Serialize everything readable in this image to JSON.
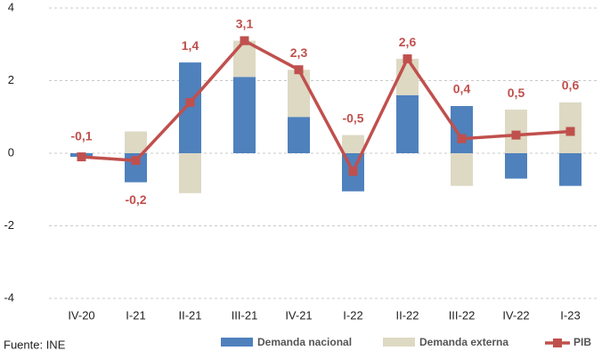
{
  "chart_data": {
    "type": "bar-line",
    "categories": [
      "IV-20",
      "I-21",
      "II-21",
      "III-21",
      "IV-21",
      "I-22",
      "II-22",
      "III-22",
      "IV-22",
      "I-23"
    ],
    "series": [
      {
        "name": "Demanda nacional",
        "type": "bar",
        "color": "#4f81bd",
        "values": [
          -0.1,
          -0.8,
          2.5,
          2.1,
          1.0,
          -1.05,
          1.6,
          1.3,
          -0.7,
          -0.9
        ]
      },
      {
        "name": "Demanda externa",
        "type": "bar",
        "color": "#ddd9c3",
        "values": [
          0.0,
          0.6,
          -1.1,
          1.0,
          1.3,
          0.5,
          1.0,
          -0.9,
          1.2,
          1.4
        ]
      },
      {
        "name": "PIB",
        "type": "line",
        "color": "#c0504d",
        "values": [
          -0.1,
          -0.2,
          1.4,
          3.1,
          2.3,
          -0.5,
          2.6,
          0.4,
          0.5,
          0.6
        ],
        "value_labels": [
          "-0,1",
          "-0,2",
          "1,4",
          "3,1",
          "2,3",
          "-0,5",
          "2,6",
          "0,4",
          "0,5",
          "0,6"
        ]
      }
    ],
    "stacked": true,
    "ylim": [
      -4,
      4
    ],
    "yticks": [
      -4,
      -2,
      0,
      2,
      4
    ],
    "grid": true,
    "source": "Fuente: INE",
    "legend": "bottom-right"
  }
}
